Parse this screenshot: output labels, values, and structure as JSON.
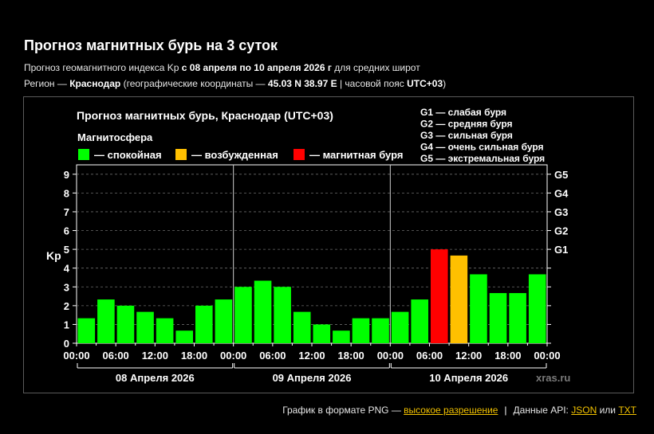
{
  "header": {
    "title": "Прогноз магнитных бурь на 3 суток",
    "line1_pre": "Прогноз геомагнитного индекса Kp ",
    "line1_dates": "с 08 апреля по 10 апреля 2026 г",
    "line1_post": " для средних широт",
    "line2_pre": "Регион — ",
    "line2_region": "Краснодар",
    "line2_mid": " (географические координаты — ",
    "line2_coords": "45.03 N 38.97 E",
    "line2_mid2": " | часовой пояс ",
    "line2_tz": "UTC+03",
    "line2_post": ")"
  },
  "chart_data": {
    "type": "bar",
    "title": "Прогноз магнитных бурь, Краснодар (UTC+03)",
    "ylabel": "Kp",
    "ylim": [
      0,
      9.5
    ],
    "y_ticks": [
      "0",
      "1",
      "2",
      "3",
      "4",
      "5",
      "6",
      "7",
      "8",
      "9"
    ],
    "right_ticks": [
      {
        "kp": 5,
        "label": "G1"
      },
      {
        "kp": 6,
        "label": "G2"
      },
      {
        "kp": 7,
        "label": "G3"
      },
      {
        "kp": 8,
        "label": "G4"
      },
      {
        "kp": 9,
        "label": "G5"
      }
    ],
    "x_ticks": [
      "00:00",
      "06:00",
      "12:00",
      "18:00",
      "00:00",
      "06:00",
      "12:00",
      "18:00",
      "00:00",
      "06:00",
      "12:00",
      "18:00",
      "00:00"
    ],
    "days": [
      "08 Апреля 2026",
      "09 Апреля 2026",
      "10 Апреля 2026"
    ],
    "values": [
      1.33,
      2.33,
      2.0,
      1.67,
      1.33,
      0.67,
      2.0,
      2.33,
      3.0,
      3.33,
      3.0,
      1.67,
      1.0,
      0.67,
      1.33,
      1.33,
      1.67,
      2.33,
      5.0,
      4.67,
      3.67,
      2.67,
      2.67,
      3.67
    ],
    "levels": [
      "calm",
      "calm",
      "calm",
      "calm",
      "calm",
      "calm",
      "calm",
      "calm",
      "calm",
      "calm",
      "calm",
      "calm",
      "calm",
      "calm",
      "calm",
      "calm",
      "calm",
      "calm",
      "storm",
      "active",
      "calm",
      "calm",
      "calm",
      "calm"
    ],
    "legend_title": "Магнитосфера",
    "legend": [
      {
        "key": "calm",
        "label": "— спокойная",
        "color": "#00ff00"
      },
      {
        "key": "active",
        "label": "— возбужденная",
        "color": "#ffc000"
      },
      {
        "key": "storm",
        "label": "— магнитная буря",
        "color": "#ff0000"
      }
    ],
    "scale": [
      "G1 — слабая буря",
      "G2 — средняя буря",
      "G3 — сильная буря",
      "G4 — очень сильная буря",
      "G5 — экстремальная буря"
    ],
    "watermark": "xras.ru",
    "grid": true
  },
  "footer": {
    "png_text": "График в формате PNG — ",
    "png_link": "высокое разрешение",
    "api_text": "Данные API: ",
    "json_link": "JSON",
    "or_text": " или ",
    "txt_link": "TXT"
  }
}
